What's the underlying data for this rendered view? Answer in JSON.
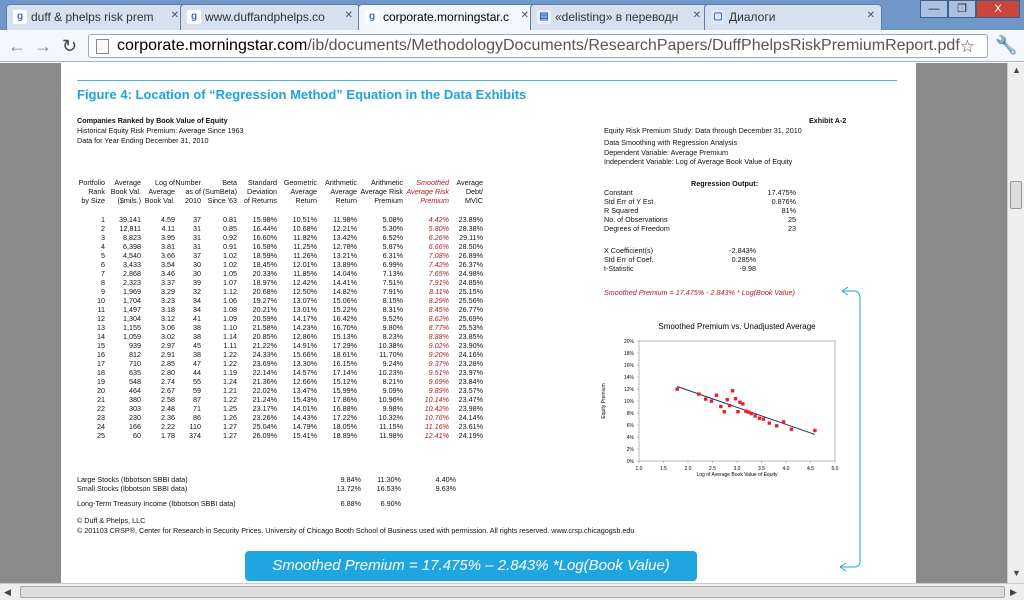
{
  "browser": {
    "tabs": [
      {
        "label": "duff & phelps risk prem",
        "icon": "google-icon"
      },
      {
        "label": "www.duffandphelps.co",
        "icon": "google-icon"
      },
      {
        "label": "corporate.morningstar.c",
        "icon": "google-icon",
        "active": true
      },
      {
        "label": "«delisting» в переводн",
        "icon": "document-icon"
      },
      {
        "label": "Диалоги",
        "icon": "chat-icon"
      }
    ],
    "url_domain": "corporate.morningstar.com",
    "url_path": "/ib/documents/MethodologyDocuments/ResearchPapers/DuffPhelpsRiskPremiumReport.pdf",
    "win_min": "—",
    "win_max": "❐",
    "win_close": "X"
  },
  "doc": {
    "figure_title": "Figure 4: Location of “Regression Method” Equation in the Data Exhibits",
    "header_left": [
      "Companies Ranked by Book Value of Equity",
      "Historical Equity Risk Premium: Average Since 1963",
      "Data for Year Ending December 31, 2010"
    ],
    "exhibit": "Exhibit A-2",
    "header_right": [
      "Equity Risk Premium Study: Data through December 31, 2010",
      "Data Smoothing with Regression Analysis",
      "Dependent Variable: Average Premium",
      "Independent Variable: Log of Average Book Value of Equity"
    ],
    "col_headers": [
      [
        "Portfolio",
        "Rank",
        "by Size"
      ],
      [
        "Average",
        "Book Val.",
        "($mils.)"
      ],
      [
        "Log of",
        "Average",
        "Book Val."
      ],
      [
        "Number",
        "as of",
        "2010"
      ],
      [
        "Beta",
        "(SumBeta)",
        "Since '63"
      ],
      [
        "Standard",
        "Deviation",
        "of Returns"
      ],
      [
        "Geometric",
        "Average",
        "Return"
      ],
      [
        "Arithmetic",
        "Average",
        "Return"
      ],
      [
        "Arithmetic",
        "Average Risk",
        "Premium"
      ],
      [
        "Smoothed",
        "Average Risk",
        "Premium"
      ],
      [
        "Average",
        "Debt/",
        "MVIC"
      ]
    ],
    "rows": [
      [
        "1",
        "39,141",
        "4.59",
        "37",
        "0.81",
        "15.98%",
        "10.51%",
        "11.98%",
        "5.08%",
        "4.42%",
        "23.89%"
      ],
      [
        "2",
        "12,811",
        "4.11",
        "31",
        "0.85",
        "16.44%",
        "10.68%",
        "12.21%",
        "5.30%",
        "5.80%",
        "28.38%"
      ],
      [
        "3",
        "8,823",
        "3.95",
        "31",
        "0.92",
        "16.60%",
        "11.82%",
        "13.42%",
        "6.52%",
        "6.26%",
        "29.11%"
      ],
      [
        "4",
        "6,398",
        "3.81",
        "31",
        "0.91",
        "16.58%",
        "11.25%",
        "12.78%",
        "5.87%",
        "6.66%",
        "28.50%"
      ],
      [
        "5",
        "4,540",
        "3.66",
        "37",
        "1.02",
        "18.59%",
        "11.26%",
        "13.21%",
        "6.31%",
        "7.08%",
        "26.89%"
      ],
      [
        "6",
        "3,433",
        "3.54",
        "30",
        "1.02",
        "18.45%",
        "12.01%",
        "13.89%",
        "6.99%",
        "7.42%",
        "26.37%"
      ],
      [
        "7",
        "2,868",
        "3.46",
        "30",
        "1.05",
        "20.33%",
        "11.85%",
        "14.04%",
        "7.13%",
        "7.65%",
        "24.98%"
      ],
      [
        "8",
        "2,323",
        "3.37",
        "39",
        "1.07",
        "18.97%",
        "12.42%",
        "14.41%",
        "7.51%",
        "7.91%",
        "24.85%"
      ],
      [
        "9",
        "1,969",
        "3.29",
        "32",
        "1.12",
        "20.68%",
        "12.50%",
        "14.82%",
        "7.91%",
        "8.11%",
        "25.15%"
      ],
      [
        "10",
        "1,704",
        "3.23",
        "34",
        "1.06",
        "19.27%",
        "13.07%",
        "15.06%",
        "8.15%",
        "8.29%",
        "25.56%"
      ],
      [
        "11",
        "1,497",
        "3.18",
        "34",
        "1.08",
        "20.21%",
        "13.01%",
        "15.22%",
        "8.31%",
        "8.45%",
        "26.77%"
      ],
      [
        "12",
        "1,304",
        "3.12",
        "41",
        "1.09",
        "20.59%",
        "14.17%",
        "16.42%",
        "9.52%",
        "8.62%",
        "25.69%"
      ],
      [
        "13",
        "1,155",
        "3.06",
        "38",
        "1.10",
        "21.58%",
        "14.23%",
        "16.70%",
        "9.80%",
        "8.77%",
        "25.53%"
      ],
      [
        "14",
        "1,059",
        "3.02",
        "38",
        "1.14",
        "20.85%",
        "12.86%",
        "15.13%",
        "8.23%",
        "8.88%",
        "23.85%"
      ],
      [
        "15",
        "939",
        "2.97",
        "45",
        "1.11",
        "21.22%",
        "14.91%",
        "17.29%",
        "10.38%",
        "9.02%",
        "23.90%"
      ],
      [
        "16",
        "812",
        "2.91",
        "38",
        "1.22",
        "24.33%",
        "15.66%",
        "18.61%",
        "11.70%",
        "9.20%",
        "24.16%"
      ],
      [
        "17",
        "710",
        "2.85",
        "47",
        "1.22",
        "23.69%",
        "13.30%",
        "16.15%",
        "9.24%",
        "9.37%",
        "23.28%"
      ],
      [
        "18",
        "635",
        "2.80",
        "44",
        "1.19",
        "22.14%",
        "14.57%",
        "17.14%",
        "10.23%",
        "9.51%",
        "23.97%"
      ],
      [
        "19",
        "548",
        "2.74",
        "55",
        "1.24",
        "21.36%",
        "12.66%",
        "15.12%",
        "8.21%",
        "9.69%",
        "23.84%"
      ],
      [
        "20",
        "464",
        "2.67",
        "59",
        "1.21",
        "22.02%",
        "13.47%",
        "15.99%",
        "9.09%",
        "9.89%",
        "23.57%"
      ],
      [
        "21",
        "380",
        "2.58",
        "87",
        "1.22",
        "21.24%",
        "15.43%",
        "17.86%",
        "10.96%",
        "10.14%",
        "23.47%"
      ],
      [
        "22",
        "303",
        "2.48",
        "71",
        "1.25",
        "23.17%",
        "14.01%",
        "16.88%",
        "9.98%",
        "10.42%",
        "23.98%"
      ],
      [
        "23",
        "230",
        "2.36",
        "86",
        "1.26",
        "23.26%",
        "14.43%",
        "17.22%",
        "10.32%",
        "10.76%",
        "24.14%"
      ],
      [
        "24",
        "166",
        "2.22",
        "110",
        "1.27",
        "25.04%",
        "14.79%",
        "18.05%",
        "11.15%",
        "11.16%",
        "23.61%"
      ],
      [
        "25",
        "60",
        "1.78",
        "374",
        "1.27",
        "26.09%",
        "15.41%",
        "18.89%",
        "11.98%",
        "12.41%",
        "24.19%"
      ]
    ],
    "bench": [
      [
        "Large Stocks (Ibbotson SBBI data)",
        "9.84%",
        "11.30%",
        "4.40%"
      ],
      [
        "Small Stocks (Ibbotson SBBI data)",
        "13.72%",
        "16.53%",
        "9.63%"
      ]
    ],
    "tbond": [
      "Long-Term Treasury Income (Ibbotson SBBI data)",
      "6.88%",
      "6.90%"
    ],
    "footer": [
      "© Duff & Phelps, LLC",
      "© 201103 CRSP®, Center for Research in Security Prices.  University of Chicago Booth School of Business used with permission.  All rights reserved.  www.crsp.chicagogsb.edu"
    ],
    "reg_title": "Regression Output:",
    "reg": [
      [
        "Constant",
        "17.475%"
      ],
      [
        "Std Err of Y Est",
        "0.876%"
      ],
      [
        "R Squared",
        "81%"
      ],
      [
        "No. of Observations",
        "25"
      ],
      [
        "Degrees of Freedom",
        "23"
      ]
    ],
    "coef": [
      [
        "X Coefficient(s)",
        "-2.843%"
      ],
      [
        "Std Err of Coef.",
        "0.285%"
      ],
      [
        "t-Statistic",
        "-9.98"
      ]
    ],
    "smoothed_eq": "Smoothed Premium  =  17.475%  -  2.843% * Log(Book Value)",
    "formula": "Smoothed Premium = 17.475% – 2.843% *Log(Book Value)"
  },
  "chart_data": {
    "type": "scatter",
    "title": "Smoothed Premium vs. Unadjusted Average",
    "xlabel": "Log of Average Book Value of Equity",
    "ylabel": "Equity Premium",
    "xlim": [
      1.0,
      5.0
    ],
    "ylim": [
      0,
      20
    ],
    "xticks": [
      "1.0",
      "1.5",
      "2.0",
      "2.5",
      "3.0",
      "3.5",
      "4.0",
      "4.5",
      "5.0"
    ],
    "yticks": [
      "0%",
      "2%",
      "4%",
      "6%",
      "8%",
      "10%",
      "12%",
      "14%",
      "16%",
      "18%",
      "20%"
    ],
    "x": [
      4.59,
      4.11,
      3.95,
      3.81,
      3.66,
      3.54,
      3.46,
      3.37,
      3.29,
      3.23,
      3.18,
      3.12,
      3.06,
      3.02,
      2.97,
      2.91,
      2.85,
      2.8,
      2.74,
      2.67,
      2.58,
      2.48,
      2.36,
      2.22,
      1.78
    ],
    "y": [
      5.08,
      5.3,
      6.52,
      5.87,
      6.31,
      6.99,
      7.13,
      7.51,
      7.91,
      8.15,
      8.31,
      9.52,
      9.8,
      8.23,
      10.38,
      11.7,
      9.24,
      10.23,
      8.21,
      9.09,
      10.96,
      9.98,
      10.32,
      11.15,
      11.98
    ],
    "line": {
      "intercept": 17.475,
      "slope": -2.843
    },
    "point_color": "#e8202a",
    "line_color": "#1a2f7a"
  }
}
